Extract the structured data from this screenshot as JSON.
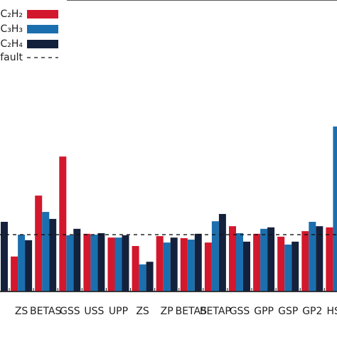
{
  "chart_data": {
    "type": "bar",
    "categories": [
      null,
      "ZS",
      "BETAS",
      "GSS",
      "USS",
      "UPP",
      "ZS",
      "ZP",
      "BETAS",
      "BETAP",
      "GSS",
      "GPP",
      "GSP",
      "GP2",
      "HSP"
    ],
    "series": [
      {
        "name": "C₂H₂",
        "color": "#d3172c",
        "values": [
          null,
          12,
          32.9,
          46.3,
          19.8,
          18.5,
          15.6,
          19,
          18.3,
          16.8,
          22.4,
          19.8,
          18.8,
          20.7,
          22
        ]
      },
      {
        "name": "C₃H₃",
        "color": "#1b6fae",
        "values": [
          null,
          19.5,
          27.3,
          19.3,
          19.5,
          18.5,
          9.3,
          16.8,
          17.8,
          24.1,
          20,
          21.5,
          16.1,
          23.9,
          56.6
        ]
      },
      {
        "name": "C₂H₄",
        "color": "#14213d",
        "values": [
          23.9,
          17.6,
          24.9,
          21.5,
          20,
          19.3,
          10.2,
          18.5,
          19.8,
          26.6,
          17.1,
          22,
          17.1,
          22.4,
          null
        ]
      }
    ],
    "reference": {
      "name": "default",
      "value": 19.5
    },
    "ylim": [
      0,
      100
    ]
  }
}
